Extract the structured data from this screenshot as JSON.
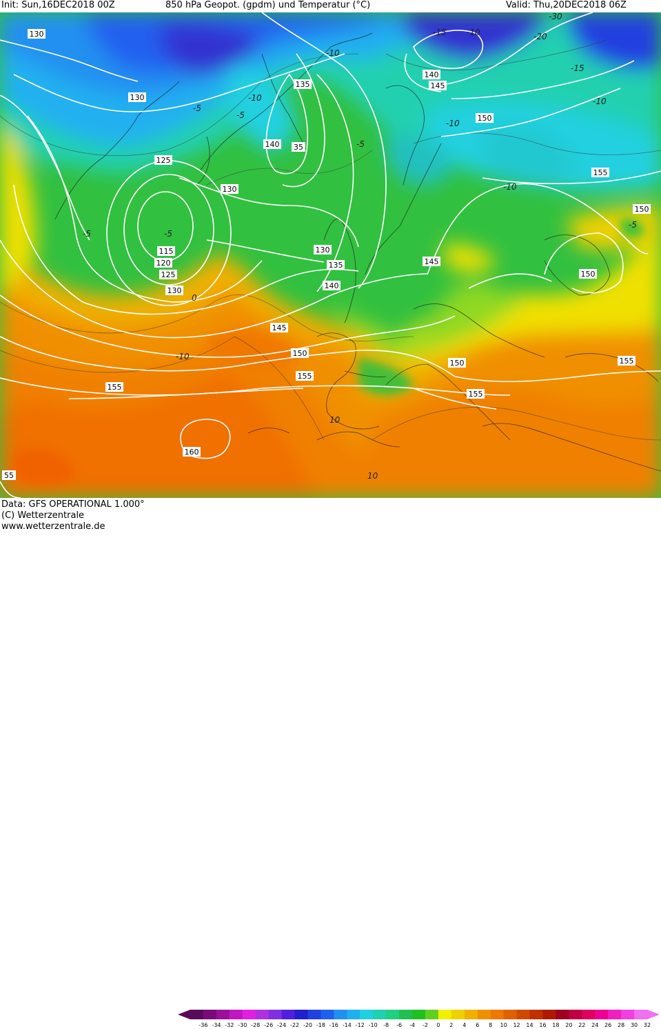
{
  "header": {
    "init": "Init: Sun,16DEC2018 00Z",
    "title": "850 hPa Geopot. (gpdm) und Temperatur (°C)",
    "valid": "Valid: Thu,20DEC2018 06Z"
  },
  "footer": {
    "data_line": "Data: GFS OPERATIONAL 1.000°",
    "copyright": "(C) Wetterzentrale",
    "url": "www.wetterzentrale.de"
  },
  "colorbar": {
    "ticks": [
      "-36",
      "-34",
      "-32",
      "-30",
      "-28",
      "-26",
      "-24",
      "-22",
      "-20",
      "-18",
      "-16",
      "-14",
      "-12",
      "-10",
      "-8",
      "-6",
      "-4",
      "-2",
      "0",
      "2",
      "4",
      "6",
      "8",
      "10",
      "12",
      "14",
      "16",
      "18",
      "20",
      "22",
      "24",
      "26",
      "28",
      "30",
      "32"
    ],
    "colors": [
      "#5a0a5a",
      "#7a0a7a",
      "#9a109a",
      "#c018c0",
      "#e020e0",
      "#b030e0",
      "#8030e0",
      "#5020e0",
      "#2020d0",
      "#2040e0",
      "#2060f0",
      "#2090f0",
      "#20b0f0",
      "#20d0e0",
      "#20d0b0",
      "#20d080",
      "#20c050",
      "#20c020",
      "#60d020",
      "#f0f000",
      "#f0d000",
      "#f0b000",
      "#f09000",
      "#f07800",
      "#e06000",
      "#d04800",
      "#c03000",
      "#b01800",
      "#a00020",
      "#c00040",
      "#e00060",
      "#f00090",
      "#f020c0",
      "#f040e0",
      "#f070f0"
    ]
  },
  "map": {
    "geopotential_labels": [
      "130",
      "130",
      "125",
      "115",
      "120",
      "125",
      "130",
      "130",
      "135",
      "140",
      "35",
      "130",
      "135",
      "140",
      "145",
      "140",
      "145",
      "150",
      "155",
      "150",
      "150",
      "145",
      "150",
      "150",
      "155",
      "155",
      "155",
      "160",
      "55",
      "150"
    ],
    "temperature_labels": [
      "-5",
      "-5",
      "-10",
      "-5",
      "-10",
      "-5",
      "0",
      "-10",
      "-15",
      "-15",
      "-10",
      "-10",
      "-10",
      "-20",
      "-5",
      "-5",
      "10",
      "-5",
      "-15",
      "-10",
      "-30"
    ]
  }
}
